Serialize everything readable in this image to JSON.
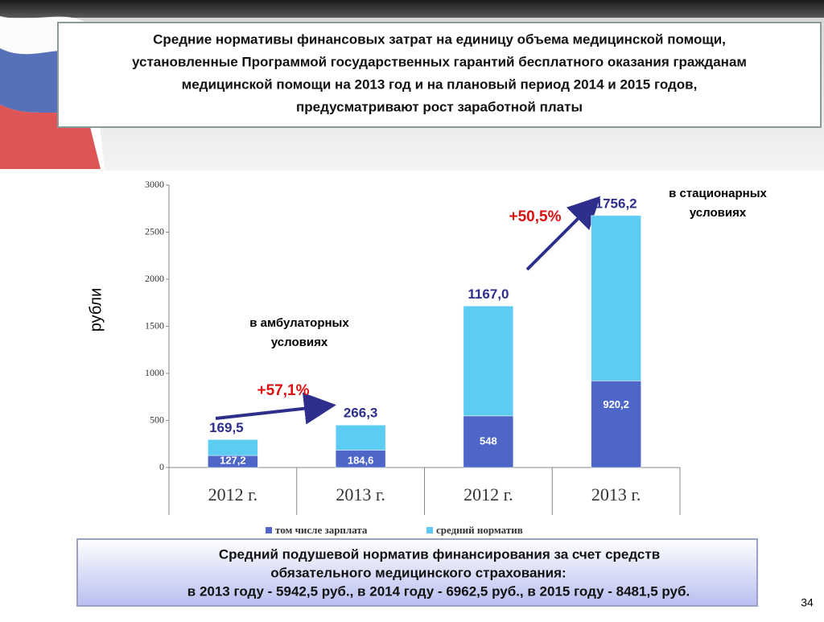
{
  "header": {
    "title_lines": [
      "Средние нормативы финансовых затрат на единицу объема медицинской помощи,",
      "установленные Программой государственных гарантий бесплатного оказания гражданам",
      "медицинской помощи на 2013 год и на плановый период 2014 и 2015 годов,",
      "предусматривают рост заработной платы"
    ]
  },
  "chart_data": {
    "type": "stacked_bar",
    "y_label": "рубли",
    "categories": [
      "2012 г.",
      "2013 г.",
      "2012 г.",
      "2013 г."
    ],
    "series": [
      {
        "name": "том числе зарплата",
        "color": "#4f66c9",
        "values": [
          127.2,
          184.6,
          548,
          920.2
        ],
        "value_labels": [
          "127,2",
          "184,6",
          "548",
          "920,2"
        ]
      },
      {
        "name": "средний норматив",
        "color": "#5cccf2",
        "values": [
          169.5,
          266.3,
          1167.0,
          1756.2
        ],
        "value_labels": [
          "169,5",
          "266,3",
          "1167,0",
          "1756,2"
        ]
      }
    ],
    "ylim": [
      0,
      3000
    ],
    "yticks": [
      0,
      500,
      1000,
      1500,
      2000,
      2500,
      3000
    ],
    "annotations": {
      "outpatient": [
        "в амбулаторных",
        "условиях"
      ],
      "outpatient_growth": "+57,1%",
      "inpatient": [
        "в стационарных",
        "условиях"
      ],
      "inpatient_growth": "+50,5%"
    }
  },
  "footer": {
    "lines": [
      "Средний подушевой норматив финансирования за счет средств",
      "обязательного медицинского страхования:",
      "в 2013 году - 5942,5 руб.,  в 2014 году - 6962,5 руб.,   в 2015 году - 8481,5 руб."
    ]
  },
  "page_number": "34"
}
